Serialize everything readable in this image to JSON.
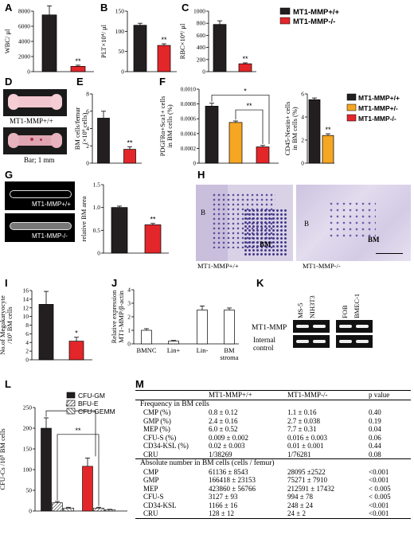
{
  "colors": {
    "wt": "#231f20",
    "het": "#f5a623",
    "ko": "#e3262a",
    "white": "#ffffff"
  },
  "chart_data": [
    {
      "panel": "A",
      "type": "bar",
      "ylabel": "WBC/ μl",
      "yticks": [
        "0",
        "2000",
        "4000",
        "6000",
        "8000"
      ],
      "ylim": [
        0,
        8000
      ],
      "categories": [
        "MT1-MMP+/+",
        "MT1-MMP-/-"
      ],
      "values": [
        7500,
        700
      ],
      "errors": [
        1200,
        150
      ],
      "annotations": [
        "",
        "**"
      ]
    },
    {
      "panel": "B",
      "type": "bar",
      "ylabel": "PLT×10⁴/ μl",
      "yticks": [
        "0",
        "50",
        "100",
        "150"
      ],
      "ylim": [
        0,
        150
      ],
      "categories": [
        "MT1-MMP+/+",
        "MT1-MMP-/-"
      ],
      "values": [
        115,
        65
      ],
      "errors": [
        5,
        4
      ],
      "annotations": [
        "",
        "**"
      ]
    },
    {
      "panel": "C",
      "type": "bar",
      "ylabel": "RBC×10⁴/ μl",
      "yticks": [
        "0",
        "200",
        "400",
        "600",
        "800",
        "1000"
      ],
      "ylim": [
        0,
        1000
      ],
      "categories": [
        "MT1-MMP+/+",
        "MT1-MMP-/-"
      ],
      "values": [
        780,
        130
      ],
      "errors": [
        60,
        15
      ],
      "annotations": [
        "",
        "**"
      ],
      "legend": [
        "MT1-MMP+/+",
        "MT1-MMP-/-"
      ]
    },
    {
      "panel": "E",
      "type": "bar",
      "ylabel": "BM cells/femur (×10⁶ cells)",
      "yticks": [
        "0",
        "2",
        "4",
        "6",
        "8"
      ],
      "ylim": [
        0,
        8
      ],
      "categories": [
        "MT1-MMP+/+",
        "MT1-MMP-/-"
      ],
      "values": [
        5.2,
        1.6
      ],
      "errors": [
        0.8,
        0.3
      ],
      "annotations": [
        "",
        "**"
      ]
    },
    {
      "panel": "F1",
      "type": "bar",
      "ylabel": "PDGFRα+Sca1+ cells in BM cells (%)",
      "yticks": [
        "0",
        "0.0002",
        "0.0004",
        "0.0006",
        "0.0008",
        "0.0010"
      ],
      "ylim": [
        0,
        0.001
      ],
      "categories": [
        "MT1-MMP+/+",
        "MT1-MMP+/-",
        "MT1-MMP-/-"
      ],
      "values": [
        0.00077,
        0.00055,
        0.00022
      ],
      "errors": [
        4e-05,
        2e-05,
        2e-05
      ],
      "brackets": [
        "*",
        "**"
      ]
    },
    {
      "panel": "F2",
      "type": "bar",
      "ylabel": "CD45-Nestin+ cells in BM cells (%)",
      "yticks": [
        "0",
        "2",
        "4",
        "6"
      ],
      "ylim": [
        0,
        6
      ],
      "categories": [
        "MT1-MMP+/+",
        "MT1-MMP+/-"
      ],
      "values": [
        5.5,
        2.4
      ],
      "errors": [
        0.15,
        0.15
      ],
      "annotations": [
        "",
        "**"
      ],
      "legend": [
        "MT1-MMP+/+",
        "MT1-MMP+/-",
        "MT1-MMP-/-"
      ]
    },
    {
      "panel": "G",
      "type": "bar",
      "ylabel": "relative BM area",
      "yticks": [
        "0",
        "0.5",
        "1.0",
        "1.5"
      ],
      "ylim": [
        0,
        1.5
      ],
      "categories": [
        "MT1-MMP+/+",
        "MT1-MMP-/-"
      ],
      "values": [
        1.0,
        0.62
      ],
      "errors": [
        0.03,
        0.03
      ],
      "annotations": [
        "",
        "**"
      ]
    },
    {
      "panel": "I",
      "type": "bar",
      "ylabel": "No.of Megakaryocyte /10³ BM cells",
      "yticks": [
        "0",
        "2",
        "4",
        "6",
        "8",
        "10",
        "12",
        "14",
        "16"
      ],
      "ylim": [
        0,
        16
      ],
      "categories": [
        "MT1-MMP+/+",
        "MT1-MMP-/-"
      ],
      "values": [
        12.8,
        4.3
      ],
      "errors": [
        3.0,
        0.9
      ],
      "annotations": [
        "",
        "*"
      ]
    },
    {
      "panel": "J",
      "type": "bar",
      "ylabel": "Relative expression MT1-MMP/β-actin",
      "yticks": [
        "0",
        "1",
        "2",
        "3",
        "4"
      ],
      "ylim": [
        0,
        4
      ],
      "categories": [
        "BMNC",
        "Lin+",
        "Lin-",
        "BM stroma"
      ],
      "values": [
        1.0,
        0.2,
        2.5,
        2.5
      ],
      "errors": [
        0.12,
        0.05,
        0.3,
        0.15
      ]
    },
    {
      "panel": "L",
      "type": "bar",
      "ylabel": "CFU-Cs /10⁵ BM cells",
      "yticks": [
        "0",
        "50",
        "100",
        "150",
        "200",
        "250"
      ],
      "ylim": [
        0,
        250
      ],
      "series": [
        {
          "name": "CFU-GM",
          "values": [
            200,
            108
          ]
        },
        {
          "name": "BFU-E",
          "values": [
            20,
            7
          ]
        },
        {
          "name": "CFU-GEMM",
          "values": [
            7,
            3
          ]
        }
      ],
      "errors": [
        [
          25,
          20
        ],
        [
          3,
          2
        ],
        [
          2,
          1
        ]
      ],
      "brackets": [
        "*",
        "**"
      ]
    }
  ],
  "labels": {
    "panels": [
      "A",
      "B",
      "C",
      "D",
      "E",
      "F",
      "G",
      "H",
      "I",
      "J",
      "K",
      "L",
      "M"
    ],
    "d_wt": "MT1-MMP+/+",
    "d_ko": "MT1-MMP-/-",
    "d_bar": "Bar; 1 mm",
    "g_wt": "MT1-MMP+/+",
    "g_ko": "MT1-MMP-/-",
    "h_wt": "MT1-MMP+/+",
    "h_ko": "MT1-MMP-/-",
    "h_b": "B",
    "h_bm": "BM",
    "k_lanes": [
      "MS-5",
      "NIH3T3",
      "FOB",
      "BMEC-1"
    ],
    "k_row1": "MT1-MMP",
    "k_row2a": "Internal",
    "k_row2b": "control"
  },
  "table": {
    "header": [
      "",
      "MT1-MMP+/+",
      "MT1-MMP-/-",
      "p value"
    ],
    "section1": "Frequency in BM cells",
    "rows1": [
      [
        "CMP (%)",
        "0.8 ± 0.12",
        "1.1 ± 0.16",
        "0.40"
      ],
      [
        "GMP (%)",
        "2.4 ± 0.16",
        "2.7 ± 0.038",
        "0.19"
      ],
      [
        "MEP (%)",
        "6.0 ± 0.52",
        "7.7 ± 0.31",
        "0.04"
      ],
      [
        "CFU-S (%)",
        "0.009 ± 0.002",
        "0.016 ± 0.003",
        "0.06"
      ],
      [
        "CD34-KSL (%)",
        "0.02 ± 0.003",
        "0.01 ± 0.001",
        "0.44"
      ],
      [
        "CRU",
        "1/38269",
        "1/76281",
        "0.08"
      ]
    ],
    "section2": "Absolute number in BM cells (cells / femur)",
    "rows2": [
      [
        "CMP",
        "61136 ± 8543",
        "28095 ±2522",
        "<0.001"
      ],
      [
        "GMP",
        "166418 ± 23153",
        "75271 ± 7910",
        "<0.001"
      ],
      [
        "MEP",
        "423860 ± 56766",
        "212591 ± 17432",
        "< 0.005"
      ],
      [
        "CFU-S",
        "3127 ± 93",
        "994 ± 78",
        "< 0.005"
      ],
      [
        "CD34-KSL",
        "1166 ± 16",
        "248 ± 24",
        "<0.001"
      ],
      [
        "CRU",
        "128 ± 12",
        "24 ± 2",
        "<0.001"
      ]
    ]
  }
}
